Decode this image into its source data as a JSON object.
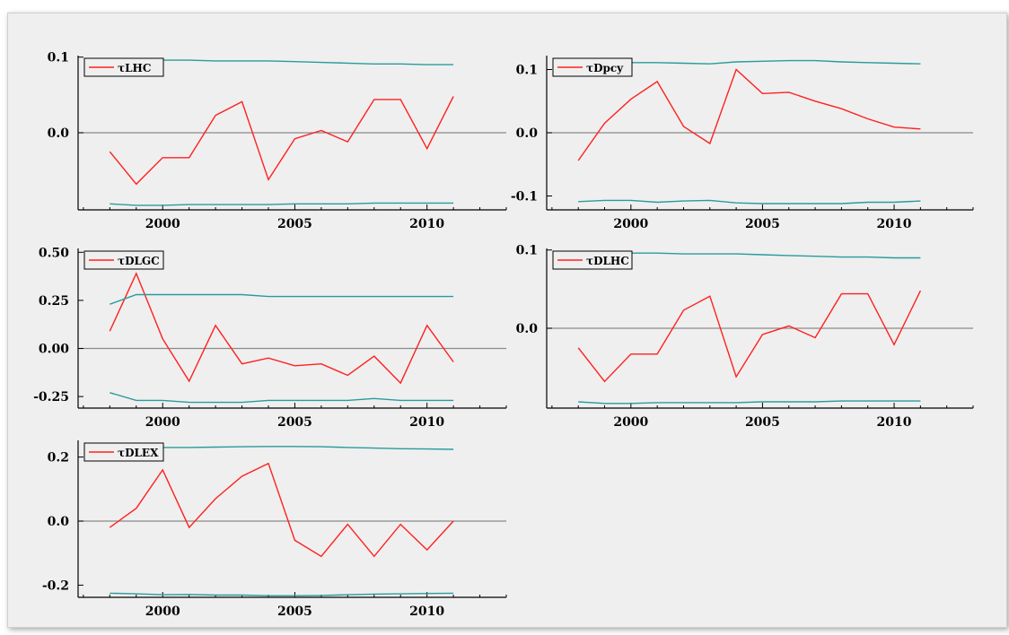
{
  "colors": {
    "estimate": "#ff2020",
    "band": "#2a9b9b",
    "zero": "#8a8a8a",
    "background": "#efefef"
  },
  "chart_data": [
    {
      "type": "line",
      "legend": "τLHC",
      "x": [
        1998,
        1999,
        2000,
        2001,
        2002,
        2003,
        2004,
        2005,
        2006,
        2007,
        2008,
        2009,
        2010,
        2011
      ],
      "series": [
        {
          "name": "τLHC",
          "values": [
            -0.025,
            -0.068,
            -0.033,
            -0.033,
            0.023,
            0.041,
            -0.062,
            -0.008,
            0.003,
            -0.012,
            0.044,
            0.044,
            -0.021,
            0.048
          ]
        },
        {
          "values": [
            0.095,
            0.096,
            0.096,
            0.096,
            0.095,
            0.095,
            0.095,
            0.094,
            0.093,
            0.092,
            0.091,
            0.091,
            0.09,
            0.09
          ]
        },
        {
          "values": [
            -0.094,
            -0.096,
            -0.096,
            -0.095,
            -0.095,
            -0.095,
            -0.095,
            -0.094,
            -0.094,
            -0.094,
            -0.093,
            -0.093,
            -0.093,
            -0.093
          ]
        }
      ],
      "xlim": [
        1996.8,
        2013.0
      ],
      "ylim": [
        -0.102,
        0.102
      ],
      "yticks": [
        0.1,
        0.0
      ],
      "ytick_labels": [
        "0.1",
        "0.0"
      ],
      "xticks": [
        2000,
        2005,
        2010
      ],
      "xtick_labels": [
        "2000",
        "2005",
        "2010"
      ]
    },
    {
      "type": "line",
      "legend": "τDpcy",
      "x": [
        1998,
        1999,
        2000,
        2001,
        2002,
        2003,
        2004,
        2005,
        2006,
        2007,
        2008,
        2009,
        2010,
        2011
      ],
      "series": [
        {
          "name": "τDpcy",
          "values": [
            -0.044,
            0.015,
            0.053,
            0.081,
            0.01,
            -0.017,
            0.1,
            0.062,
            0.064,
            0.05,
            0.038,
            0.022,
            0.009,
            0.006
          ]
        },
        {
          "values": [
            0.11,
            0.11,
            0.111,
            0.111,
            0.11,
            0.109,
            0.112,
            0.113,
            0.114,
            0.114,
            0.112,
            0.111,
            0.11,
            0.109
          ]
        },
        {
          "values": [
            -0.109,
            -0.107,
            -0.107,
            -0.11,
            -0.108,
            -0.107,
            -0.111,
            -0.112,
            -0.112,
            -0.112,
            -0.112,
            -0.11,
            -0.11,
            -0.108
          ]
        }
      ],
      "xlim": [
        1996.8,
        2013.0
      ],
      "ylim": [
        -0.122,
        0.122
      ],
      "yticks": [
        0.1,
        0.0,
        -0.1
      ],
      "ytick_labels": [
        "0.1",
        "0.0",
        "-0.1"
      ],
      "xticks": [
        2000,
        2005,
        2010
      ],
      "xtick_labels": [
        "2000",
        "2005",
        "2010"
      ]
    },
    {
      "type": "line",
      "legend": "τDLGC",
      "x": [
        1998,
        1999,
        2000,
        2001,
        2002,
        2003,
        2004,
        2005,
        2006,
        2007,
        2008,
        2009,
        2010,
        2011
      ],
      "series": [
        {
          "name": "τDLGC",
          "values": [
            0.09,
            0.39,
            0.05,
            -0.17,
            0.12,
            -0.08,
            -0.05,
            -0.09,
            -0.08,
            -0.14,
            -0.04,
            -0.18,
            0.12,
            -0.07
          ]
        },
        {
          "values": [
            0.23,
            0.28,
            0.28,
            0.28,
            0.28,
            0.28,
            0.27,
            0.27,
            0.27,
            0.27,
            0.27,
            0.27,
            0.27,
            0.27
          ]
        },
        {
          "values": [
            -0.23,
            -0.27,
            -0.27,
            -0.28,
            -0.28,
            -0.28,
            -0.27,
            -0.27,
            -0.27,
            -0.27,
            -0.26,
            -0.27,
            -0.27,
            -0.27
          ]
        }
      ],
      "xlim": [
        1996.8,
        2013.0
      ],
      "ylim": [
        -0.31,
        0.52
      ],
      "yticks": [
        0.5,
        0.25,
        0.0,
        -0.25
      ],
      "ytick_labels": [
        "0.50",
        "0.25",
        "0.00",
        "-0.25"
      ],
      "xticks": [
        2000,
        2005,
        2010
      ],
      "xtick_labels": [
        "2000",
        "2005",
        "2010"
      ]
    },
    {
      "type": "line",
      "legend": "τDLHC",
      "x": [
        1998,
        1999,
        2000,
        2001,
        2002,
        2003,
        2004,
        2005,
        2006,
        2007,
        2008,
        2009,
        2010,
        2011
      ],
      "series": [
        {
          "name": "τDLHC",
          "values": [
            -0.025,
            -0.068,
            -0.033,
            -0.033,
            0.023,
            0.041,
            -0.062,
            -0.008,
            0.003,
            -0.012,
            0.044,
            0.044,
            -0.021,
            0.048
          ]
        },
        {
          "values": [
            0.095,
            0.096,
            0.096,
            0.096,
            0.095,
            0.095,
            0.095,
            0.094,
            0.093,
            0.092,
            0.091,
            0.091,
            0.09,
            0.09
          ]
        },
        {
          "values": [
            -0.094,
            -0.096,
            -0.096,
            -0.095,
            -0.095,
            -0.095,
            -0.095,
            -0.094,
            -0.094,
            -0.094,
            -0.093,
            -0.093,
            -0.093,
            -0.093
          ]
        }
      ],
      "xlim": [
        1996.8,
        2013.0
      ],
      "ylim": [
        -0.102,
        0.102
      ],
      "yticks": [
        0.1,
        0.0
      ],
      "ytick_labels": [
        "0.1",
        "0.0"
      ],
      "xticks": [
        2000,
        2005,
        2010
      ],
      "xtick_labels": [
        "2000",
        "2005",
        "2010"
      ]
    },
    {
      "type": "line",
      "legend": "τDLEX",
      "x": [
        1998,
        1999,
        2000,
        2001,
        2002,
        2003,
        2004,
        2005,
        2006,
        2007,
        2008,
        2009,
        2010,
        2011
      ],
      "series": [
        {
          "name": "τDLEX",
          "values": [
            -0.02,
            0.04,
            0.16,
            -0.02,
            0.07,
            0.14,
            0.18,
            -0.06,
            -0.11,
            -0.01,
            -0.11,
            -0.01,
            -0.09,
            0.0
          ]
        },
        {
          "values": [
            0.225,
            0.228,
            0.23,
            0.23,
            0.231,
            0.232,
            0.233,
            0.233,
            0.232,
            0.23,
            0.228,
            0.226,
            0.225,
            0.224
          ]
        },
        {
          "values": [
            -0.225,
            -0.227,
            -0.23,
            -0.229,
            -0.231,
            -0.231,
            -0.233,
            -0.233,
            -0.232,
            -0.23,
            -0.228,
            -0.227,
            -0.226,
            -0.225
          ]
        }
      ],
      "xlim": [
        1996.8,
        2013.0
      ],
      "ylim": [
        -0.238,
        0.252
      ],
      "yticks": [
        0.2,
        0.0,
        -0.2
      ],
      "ytick_labels": [
        "0.2",
        "0.0",
        "-0.2"
      ],
      "xticks": [
        2000,
        2005,
        2010
      ],
      "xtick_labels": [
        "2000",
        "2005",
        "2010"
      ]
    }
  ]
}
